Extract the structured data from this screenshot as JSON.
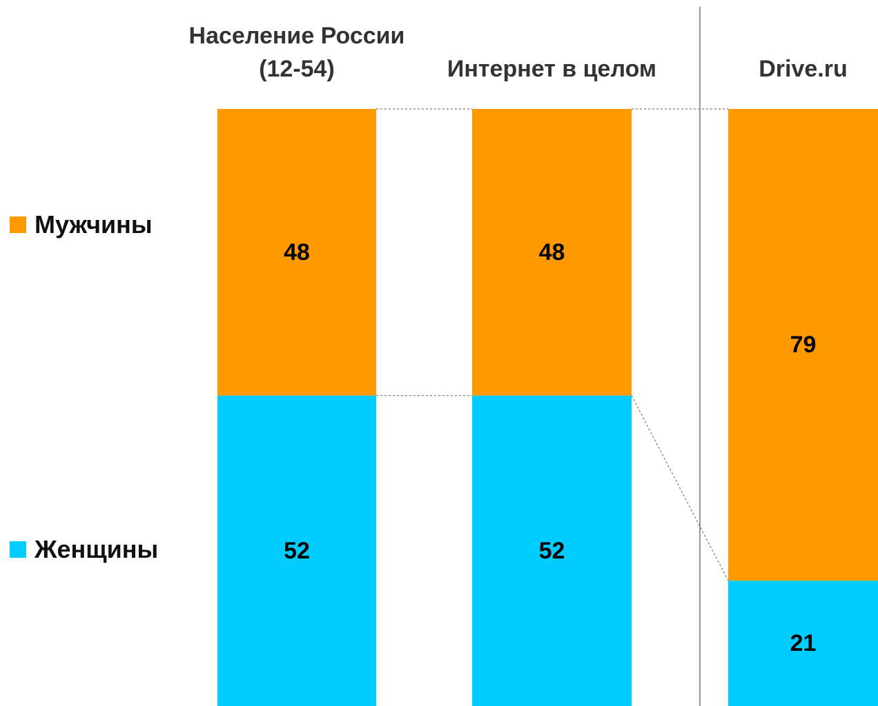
{
  "chart_data": {
    "type": "bar",
    "stacked": true,
    "categories": [
      "Население России (12-54)",
      "Интернет в целом",
      "Drive.ru"
    ],
    "series": [
      {
        "name": "Мужчины",
        "color": "#ff9900",
        "values": [
          48,
          48,
          79
        ]
      },
      {
        "name": "Женщины",
        "color": "#00ccff",
        "values": [
          52,
          52,
          21
        ]
      }
    ],
    "ylim": [
      0,
      100
    ]
  }
}
